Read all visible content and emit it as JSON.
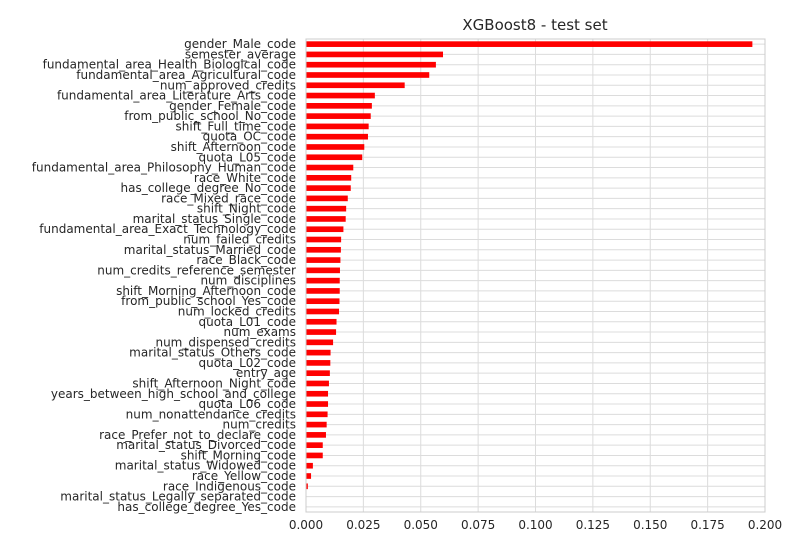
{
  "chart_data": {
    "type": "bar",
    "orientation": "horizontal",
    "title": "XGBoost8 - test set",
    "xlabel": "",
    "ylabel": "",
    "xlim": [
      0,
      0.2
    ],
    "xticks": [
      "0.000",
      "0.025",
      "0.050",
      "0.075",
      "0.100",
      "0.125",
      "0.150",
      "0.175",
      "0.200"
    ],
    "grid": true,
    "legend": "none",
    "bar_color": "#ff0000",
    "categories": [
      "gender_Male_code",
      "semester_average",
      "fundamental_area_Health_Biological_code",
      "fundamental_area_Agricultural_code",
      "num_approved_credits",
      "fundamental_area_Literature_Arts_code",
      "gender_Female_code",
      "from_public_school_No_code",
      "shift_Full_time_code",
      "quota_OC_code",
      "shift_Afternoon_code",
      "quota_L05_code",
      "fundamental_area_Philosophy_Human_code",
      "race_White_code",
      "has_college_degree_No_code",
      "race_Mixed_race_code",
      "shift_Night_code",
      "marital_status_Single_code",
      "fundamental_area_Exact_Technology_code",
      "num_failed_credits",
      "marital_status_Married_code",
      "race_Black_code",
      "num_credits_reference_semester",
      "num_disciplines",
      "shift_Morning_Afternoon_code",
      "from_public_school_Yes_code",
      "num_locked_credits",
      "quota_L01_code",
      "num_exams",
      "num_dispensed_credits",
      "marital_status_Others_code",
      "quota_L02_code",
      "entry_age",
      "shift_Afternoon_Night_code",
      "years_between_high_school_and_college",
      "quota_L06_code",
      "num_nonattendance_credits",
      "num_credits",
      "race_Prefer_not_to_declare_code",
      "marital_status_Divorced_code",
      "shift_Morning_code",
      "marital_status_Widowed_code",
      "race_Yellow_code",
      "race_Indigenous_code",
      "marital_status_Legally_separated_code",
      "has_college_degree_Yes_code"
    ],
    "values": [
      0.1945,
      0.0597,
      0.0566,
      0.0537,
      0.043,
      0.03,
      0.0287,
      0.0282,
      0.0273,
      0.027,
      0.0254,
      0.0245,
      0.0206,
      0.0197,
      0.0195,
      0.0182,
      0.0175,
      0.0173,
      0.0163,
      0.0153,
      0.0152,
      0.015,
      0.0148,
      0.0147,
      0.0147,
      0.0146,
      0.0144,
      0.0133,
      0.0131,
      0.0118,
      0.0107,
      0.0106,
      0.0104,
      0.01,
      0.0096,
      0.0096,
      0.0094,
      0.009,
      0.0087,
      0.0073,
      0.0073,
      0.003,
      0.0022,
      0.0008,
      0.0,
      0.0
    ]
  }
}
